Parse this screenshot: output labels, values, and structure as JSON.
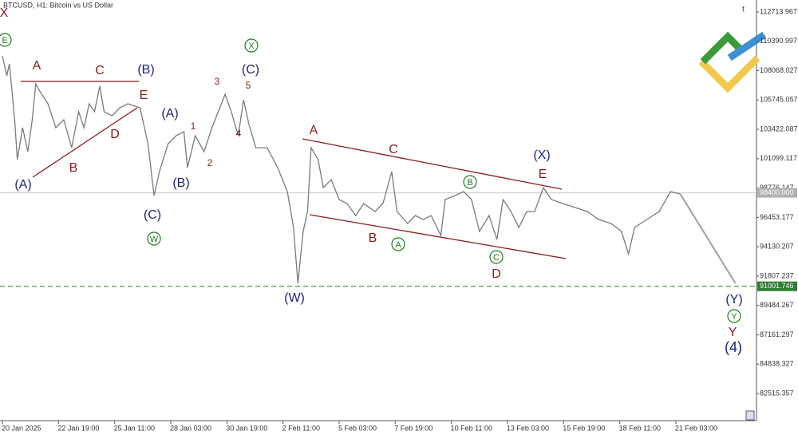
{
  "chart_data": {
    "type": "line",
    "title": "BTCUSD, H1:  Bitcoin vs US Dollar",
    "x": [
      0,
      5,
      8,
      14,
      17,
      23,
      29,
      34,
      38,
      43,
      52,
      61,
      70,
      79,
      87,
      93,
      99,
      105,
      111,
      116,
      125,
      134,
      143,
      157,
      166,
      173,
      179,
      189,
      198,
      207,
      211,
      220,
      230,
      239,
      248,
      254,
      261,
      269,
      275,
      281,
      289,
      302,
      314,
      325,
      332,
      337,
      343,
      348,
      352,
      360,
      366,
      375,
      384,
      393,
      403,
      412,
      425,
      434,
      444,
      450,
      462,
      471,
      480,
      489,
      500,
      505,
      516,
      526,
      535,
      544,
      555,
      564,
      571,
      580,
      589,
      598,
      607,
      617,
      626,
      639,
      653,
      667,
      680,
      694,
      706,
      714,
      721,
      735,
      749,
      762,
      773
    ],
    "series": [
      {
        "color": "#7a7a7a",
        "values": [
          109240,
          107660,
          108610,
          104180,
          101030,
          103550,
          101660,
          104180,
          107030,
          106400,
          105450,
          103550,
          104180,
          101970,
          104820,
          103550,
          105450,
          104820,
          106840,
          104820,
          104500,
          105130,
          105450,
          105130,
          102290,
          98180,
          100080,
          102290,
          102920,
          103240,
          100390,
          102920,
          101660,
          103550,
          105130,
          106200,
          104820,
          102920,
          105760,
          103870,
          101970,
          101970,
          100390,
          98500,
          95660,
          91230,
          95340,
          96920,
          101970,
          101030,
          98810,
          99450,
          97870,
          97550,
          96600,
          97550,
          96920,
          97550,
          100080,
          96920,
          95970,
          96600,
          96290,
          96600,
          95020,
          97870,
          98180,
          98500,
          97870,
          95340,
          96600,
          94710,
          97870,
          96920,
          95660,
          96920,
          96920,
          98810,
          97870,
          97550,
          97240,
          96920,
          96290,
          95970,
          95340,
          93570,
          95660,
          96290,
          96920,
          98500,
          98310
        ]
      }
    ],
    "forecast": {
      "color": "#a0a0a0",
      "x": [
        773,
        836
      ],
      "values": [
        98310,
        91240
      ]
    },
    "xlim": [
      0,
      860
    ],
    "xticks": [
      {
        "value": 0,
        "label": "20 Jan 2025"
      },
      {
        "value": 64,
        "label": "22 Jan 19:00"
      },
      {
        "value": 128,
        "label": "25 Jan 11:00"
      },
      {
        "value": 192,
        "label": "28 Jan 03:00"
      },
      {
        "value": 256,
        "label": "30 Jan 19:00"
      },
      {
        "value": 320,
        "label": "2 Feb 11:00"
      },
      {
        "value": 384,
        "label": "5 Feb 03:00"
      },
      {
        "value": 448,
        "label": "7 Feb 19:00"
      },
      {
        "value": 512,
        "label": "10 Feb 11:00"
      },
      {
        "value": 576,
        "label": "13 Feb 03:00"
      },
      {
        "value": 640,
        "label": "15 Feb 19:00"
      },
      {
        "value": 704,
        "label": "18 Feb 11:00"
      },
      {
        "value": 768,
        "label": "21 Feb 03:00"
      }
    ],
    "ylim": [
      80370,
      113660
    ],
    "yticks": [
      112713.967,
      110390.997,
      108068.027,
      105745.057,
      103422.087,
      101099.117,
      98776.147,
      96453.177,
      94130.207,
      91807.237,
      89484.267,
      87161.297,
      84838.327,
      82515.357
    ],
    "price_line": {
      "value": 98400,
      "label": "98400.000"
    },
    "level_line": 91001.746,
    "annotations": [
      {
        "text": "X",
        "color": "#8b1a1a"
      },
      {
        "text": "E",
        "color": "#1e7d1e",
        "circled": true
      },
      {
        "text": "A",
        "color": "#8b1a1a"
      },
      {
        "text": "C",
        "color": "#8b1a1a"
      },
      {
        "text": "(B)",
        "color": "#1a237e"
      },
      {
        "text": "E",
        "color": "#8b1a1a"
      },
      {
        "text": "(A)",
        "color": "#1a237e"
      },
      {
        "text": "D",
        "color": "#8b1a1a"
      },
      {
        "text": "B",
        "color": "#8b1a1a"
      },
      {
        "text": "(A)",
        "color": "#1a237e"
      },
      {
        "text": "(B)",
        "color": "#1a237e"
      },
      {
        "text": "(C)",
        "color": "#1a237e"
      },
      {
        "text": "W",
        "color": "#1e7d1e",
        "circled": true
      },
      {
        "text": "3",
        "color": "#8b1a1a"
      },
      {
        "text": "5",
        "color": "#8b1a1a"
      },
      {
        "text": "(C)",
        "color": "#1a237e"
      },
      {
        "text": "X",
        "color": "#1e7d1e",
        "circled": true
      },
      {
        "text": "1",
        "color": "#8b1a1a"
      },
      {
        "text": "4",
        "color": "#8b1a1a"
      },
      {
        "text": "2",
        "color": "#8b1a1a"
      },
      {
        "text": "A",
        "color": "#8b1a1a"
      },
      {
        "text": "C",
        "color": "#8b1a1a"
      },
      {
        "text": "(X)",
        "color": "#1a237e"
      },
      {
        "text": "E",
        "color": "#8b1a1a"
      },
      {
        "text": "B",
        "color": "#1e7d1e",
        "circled": true
      },
      {
        "text": "B",
        "color": "#8b1a1a"
      },
      {
        "text": "A",
        "color": "#1e7d1e",
        "circled": true
      },
      {
        "text": "C",
        "color": "#1e7d1e",
        "circled": true
      },
      {
        "text": "D",
        "color": "#8b1a1a"
      },
      {
        "text": "(W)",
        "color": "#1a237e"
      },
      {
        "text": "(Y)",
        "color": "#1a237e"
      },
      {
        "text": "Y",
        "color": "#1e7d1e",
        "circled": true
      },
      {
        "text": "Y",
        "color": "#8b1a1a"
      },
      {
        "text": "(4)",
        "color": "#1a237e"
      }
    ]
  }
}
